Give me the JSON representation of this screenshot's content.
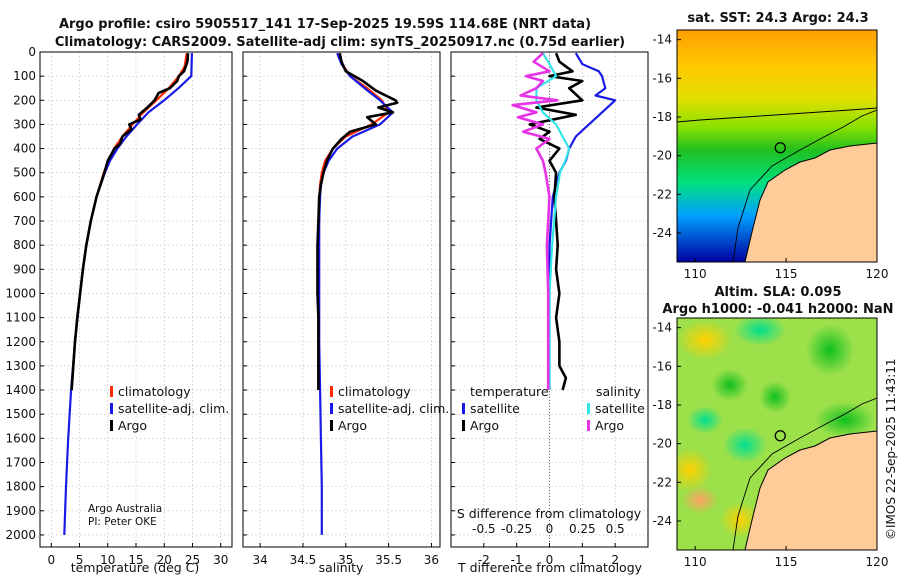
{
  "header": {
    "line1": "Argo profile: csiro 5905517_141 17-Sep-2025 19.59S 114.68E (NRT data)",
    "line2": "Climatology: CARS2009. Satellite-adj clim: synTS_20250917.nc (0.75d earlier)"
  },
  "credits": {
    "org": "Argo Australia",
    "pi": "PI: Peter OKE"
  },
  "watermark": "©IMOS 22-Sep-2025 11:43:11",
  "colors": {
    "climatology": "#ff2a00",
    "satellite": "#1a1ae6",
    "argo": "#000000",
    "sat_diff": "#33e6e6",
    "argo_diff": "#e633e6",
    "land": "#ffcc99"
  },
  "chart_data": [
    {
      "type": "line",
      "name": "temperature",
      "xlabel": "temperature (deg C)",
      "ylabel": "",
      "xlim": [
        -2,
        32
      ],
      "ylim": [
        0,
        2050
      ],
      "xticks": [
        0,
        5,
        10,
        15,
        20,
        25,
        30
      ],
      "yticks": [
        0,
        100,
        200,
        300,
        400,
        500,
        600,
        700,
        800,
        900,
        1000,
        1100,
        1200,
        1300,
        1400,
        1500,
        1600,
        1700,
        1800,
        1900,
        2000
      ],
      "legend": [
        "climatology",
        "satellite-adj. clim.",
        "Argo"
      ],
      "series": [
        {
          "name": "climatology",
          "color": "#ff2a00",
          "depth": [
            5,
            60,
            100,
            150,
            200,
            250,
            300,
            350,
            400,
            450,
            500,
            600,
            700,
            800,
            900,
            1000,
            1100,
            1200,
            1300,
            1400
          ],
          "values": [
            24.0,
            23.6,
            22.6,
            20.8,
            18.6,
            16.3,
            14.4,
            12.6,
            11.1,
            10.1,
            9.3,
            8.0,
            7.0,
            6.2,
            5.6,
            5.1,
            4.6,
            4.2,
            3.9,
            3.6
          ]
        },
        {
          "name": "satellite-adj. clim.",
          "color": "#1a1ae6",
          "depth": [
            5,
            100,
            150,
            200,
            250,
            300,
            350,
            400,
            450,
            500,
            600,
            700,
            800,
            900,
            1000,
            1200,
            1400,
            1600,
            1800,
            2000
          ],
          "values": [
            24.9,
            24.8,
            22.5,
            20.0,
            17.2,
            15.2,
            13.3,
            11.7,
            10.4,
            9.5,
            8.0,
            7.0,
            6.2,
            5.6,
            5.1,
            4.2,
            3.5,
            3.0,
            2.6,
            2.3
          ]
        },
        {
          "name": "Argo",
          "color": "#000000",
          "depth": [
            5,
            40,
            80,
            100,
            120,
            150,
            170,
            200,
            230,
            260,
            280,
            300,
            320,
            350,
            380,
            400,
            450,
            500,
            600,
            700,
            800,
            900,
            1000,
            1100,
            1200,
            1300,
            1400
          ],
          "values": [
            24.2,
            24.1,
            23.5,
            22.6,
            22.3,
            21.0,
            19.0,
            18.3,
            17.0,
            15.5,
            15.8,
            13.8,
            14.2,
            12.6,
            12.2,
            11.2,
            10.0,
            9.4,
            8.0,
            7.0,
            6.2,
            5.6,
            5.1,
            4.6,
            4.2,
            3.9,
            3.6
          ]
        }
      ]
    },
    {
      "type": "line",
      "name": "salinity",
      "xlabel": "salinity",
      "xlim": [
        33.8,
        36.1
      ],
      "ylim": [
        0,
        2050
      ],
      "xticks": [
        34,
        34.5,
        35,
        35.5,
        36
      ],
      "legend": [
        "climatology",
        "satellite-adj. clim.",
        "Argo"
      ],
      "series": [
        {
          "name": "climatology",
          "color": "#ff2a00",
          "depth": [
            5,
            50,
            100,
            150,
            200,
            250,
            300,
            350,
            400,
            450,
            500,
            550,
            600,
            650,
            700,
            800,
            900,
            1000,
            1200,
            1400
          ],
          "values": [
            34.92,
            34.96,
            35.05,
            35.25,
            35.42,
            35.5,
            35.3,
            35.0,
            34.85,
            34.76,
            34.72,
            34.7,
            34.69,
            34.69,
            34.69,
            34.68,
            34.68,
            34.68,
            34.68,
            34.68
          ]
        },
        {
          "name": "satellite-adj. clim.",
          "color": "#1a1ae6",
          "depth": [
            5,
            50,
            100,
            150,
            200,
            250,
            300,
            350,
            400,
            450,
            500,
            550,
            600,
            700,
            800,
            1000,
            1200,
            1400,
            1600,
            1800,
            2000
          ],
          "values": [
            34.9,
            34.95,
            35.05,
            35.22,
            35.4,
            35.55,
            35.4,
            35.08,
            34.9,
            34.8,
            34.74,
            34.71,
            34.7,
            34.69,
            34.69,
            34.69,
            34.69,
            34.7,
            34.71,
            34.72,
            34.72
          ]
        },
        {
          "name": "Argo",
          "color": "#000000",
          "depth": [
            5,
            40,
            80,
            120,
            160,
            200,
            210,
            230,
            250,
            270,
            300,
            330,
            360,
            400,
            450,
            500,
            550,
            600,
            700,
            800,
            900,
            1000,
            1100,
            1200,
            1300,
            1400
          ],
          "values": [
            34.93,
            34.95,
            35.0,
            35.2,
            35.35,
            35.58,
            35.6,
            35.38,
            35.55,
            35.25,
            35.35,
            35.05,
            34.95,
            34.85,
            34.78,
            34.74,
            34.71,
            34.69,
            34.68,
            34.67,
            34.67,
            34.67,
            34.68,
            34.68,
            34.68,
            34.68
          ]
        }
      ]
    },
    {
      "type": "line",
      "name": "difference",
      "xlabel": "T difference from climatology",
      "xlabel_top": "S difference from climatology",
      "xlim": [
        -3,
        3
      ],
      "ylim": [
        0,
        2050
      ],
      "xticks": [
        -2,
        -1,
        0,
        1,
        2
      ],
      "xticks_top": [
        "-0.5",
        "-0.25",
        "0",
        "0.25",
        "0.5"
      ],
      "legend_t_title": "temperature",
      "legend_s_title": "salinity",
      "legend": [
        "satellite",
        "Argo",
        "satellite",
        "Argo"
      ],
      "series": [
        {
          "name": "T satellite",
          "color": "#1a1ae6",
          "depth": [
            5,
            50,
            80,
            100,
            150,
            180,
            200,
            250,
            300,
            350,
            400,
            450,
            500,
            600,
            800,
            1000,
            1200,
            1400
          ],
          "values": [
            0.8,
            1.0,
            1.5,
            1.6,
            1.7,
            1.4,
            2.0,
            1.6,
            1.2,
            0.8,
            0.6,
            0.5,
            0.3,
            0.1,
            0.0,
            0.0,
            0.0,
            0.0
          ]
        },
        {
          "name": "T Argo",
          "color": "#000000",
          "depth": [
            5,
            40,
            80,
            100,
            120,
            150,
            200,
            230,
            260,
            300,
            330,
            360,
            400,
            450,
            500,
            600,
            700,
            800,
            900,
            1000,
            1100,
            1200,
            1300,
            1350,
            1400
          ],
          "values": [
            0.2,
            0.3,
            0.7,
            0.0,
            1.0,
            0.6,
            1.0,
            -0.4,
            0.8,
            -0.6,
            0.0,
            -0.3,
            0.3,
            0.0,
            0.2,
            0.15,
            0.2,
            0.25,
            0.2,
            0.3,
            0.2,
            0.3,
            0.3,
            0.5,
            0.4
          ]
        },
        {
          "name": "S satellite",
          "color": "#33e6e6",
          "depth": [
            5,
            50,
            100,
            150,
            200,
            250,
            300,
            350,
            400,
            450,
            500,
            600,
            800,
            1000,
            1200,
            1400
          ],
          "values": [
            -0.05,
            0.0,
            0.05,
            -0.1,
            -0.1,
            -0.05,
            0.05,
            0.1,
            0.15,
            0.12,
            0.08,
            0.05,
            0.02,
            0.0,
            0.0,
            0.0
          ]
        },
        {
          "name": "S Argo",
          "color": "#e633e6",
          "depth": [
            5,
            40,
            80,
            100,
            120,
            150,
            180,
            200,
            220,
            250,
            270,
            300,
            330,
            360,
            400,
            450,
            500,
            600,
            800,
            1000,
            1200,
            1400
          ],
          "values": [
            -0.05,
            -0.12,
            0.0,
            -0.18,
            -0.05,
            -0.1,
            -0.22,
            0.06,
            -0.28,
            -0.1,
            -0.24,
            -0.05,
            -0.2,
            0.0,
            -0.1,
            -0.05,
            -0.03,
            0.0,
            -0.02,
            -0.01,
            -0.01,
            -0.01
          ]
        }
      ]
    },
    {
      "type": "heatmap",
      "name": "sat-sst-map",
      "title": "sat. SST: 24.3 Argo: 24.3",
      "xlim": [
        109,
        120
      ],
      "ylim": [
        -25.5,
        -13.5
      ],
      "xticks": [
        110,
        115,
        120
      ],
      "yticks": [
        -14,
        -16,
        -18,
        -20,
        -22,
        -24
      ],
      "marker": {
        "lon": 114.68,
        "lat": -19.59
      }
    },
    {
      "type": "heatmap",
      "name": "altimetry-map",
      "title1": "Altim. SLA: 0.095",
      "title2": "Argo h1000: -0.041 h2000: NaN",
      "xlim": [
        109,
        120
      ],
      "ylim": [
        -25.5,
        -13.5
      ],
      "xticks": [
        110,
        115,
        120
      ],
      "yticks": [
        -14,
        -16,
        -18,
        -20,
        -22,
        -24
      ],
      "marker": {
        "lon": 114.68,
        "lat": -19.59
      }
    }
  ]
}
